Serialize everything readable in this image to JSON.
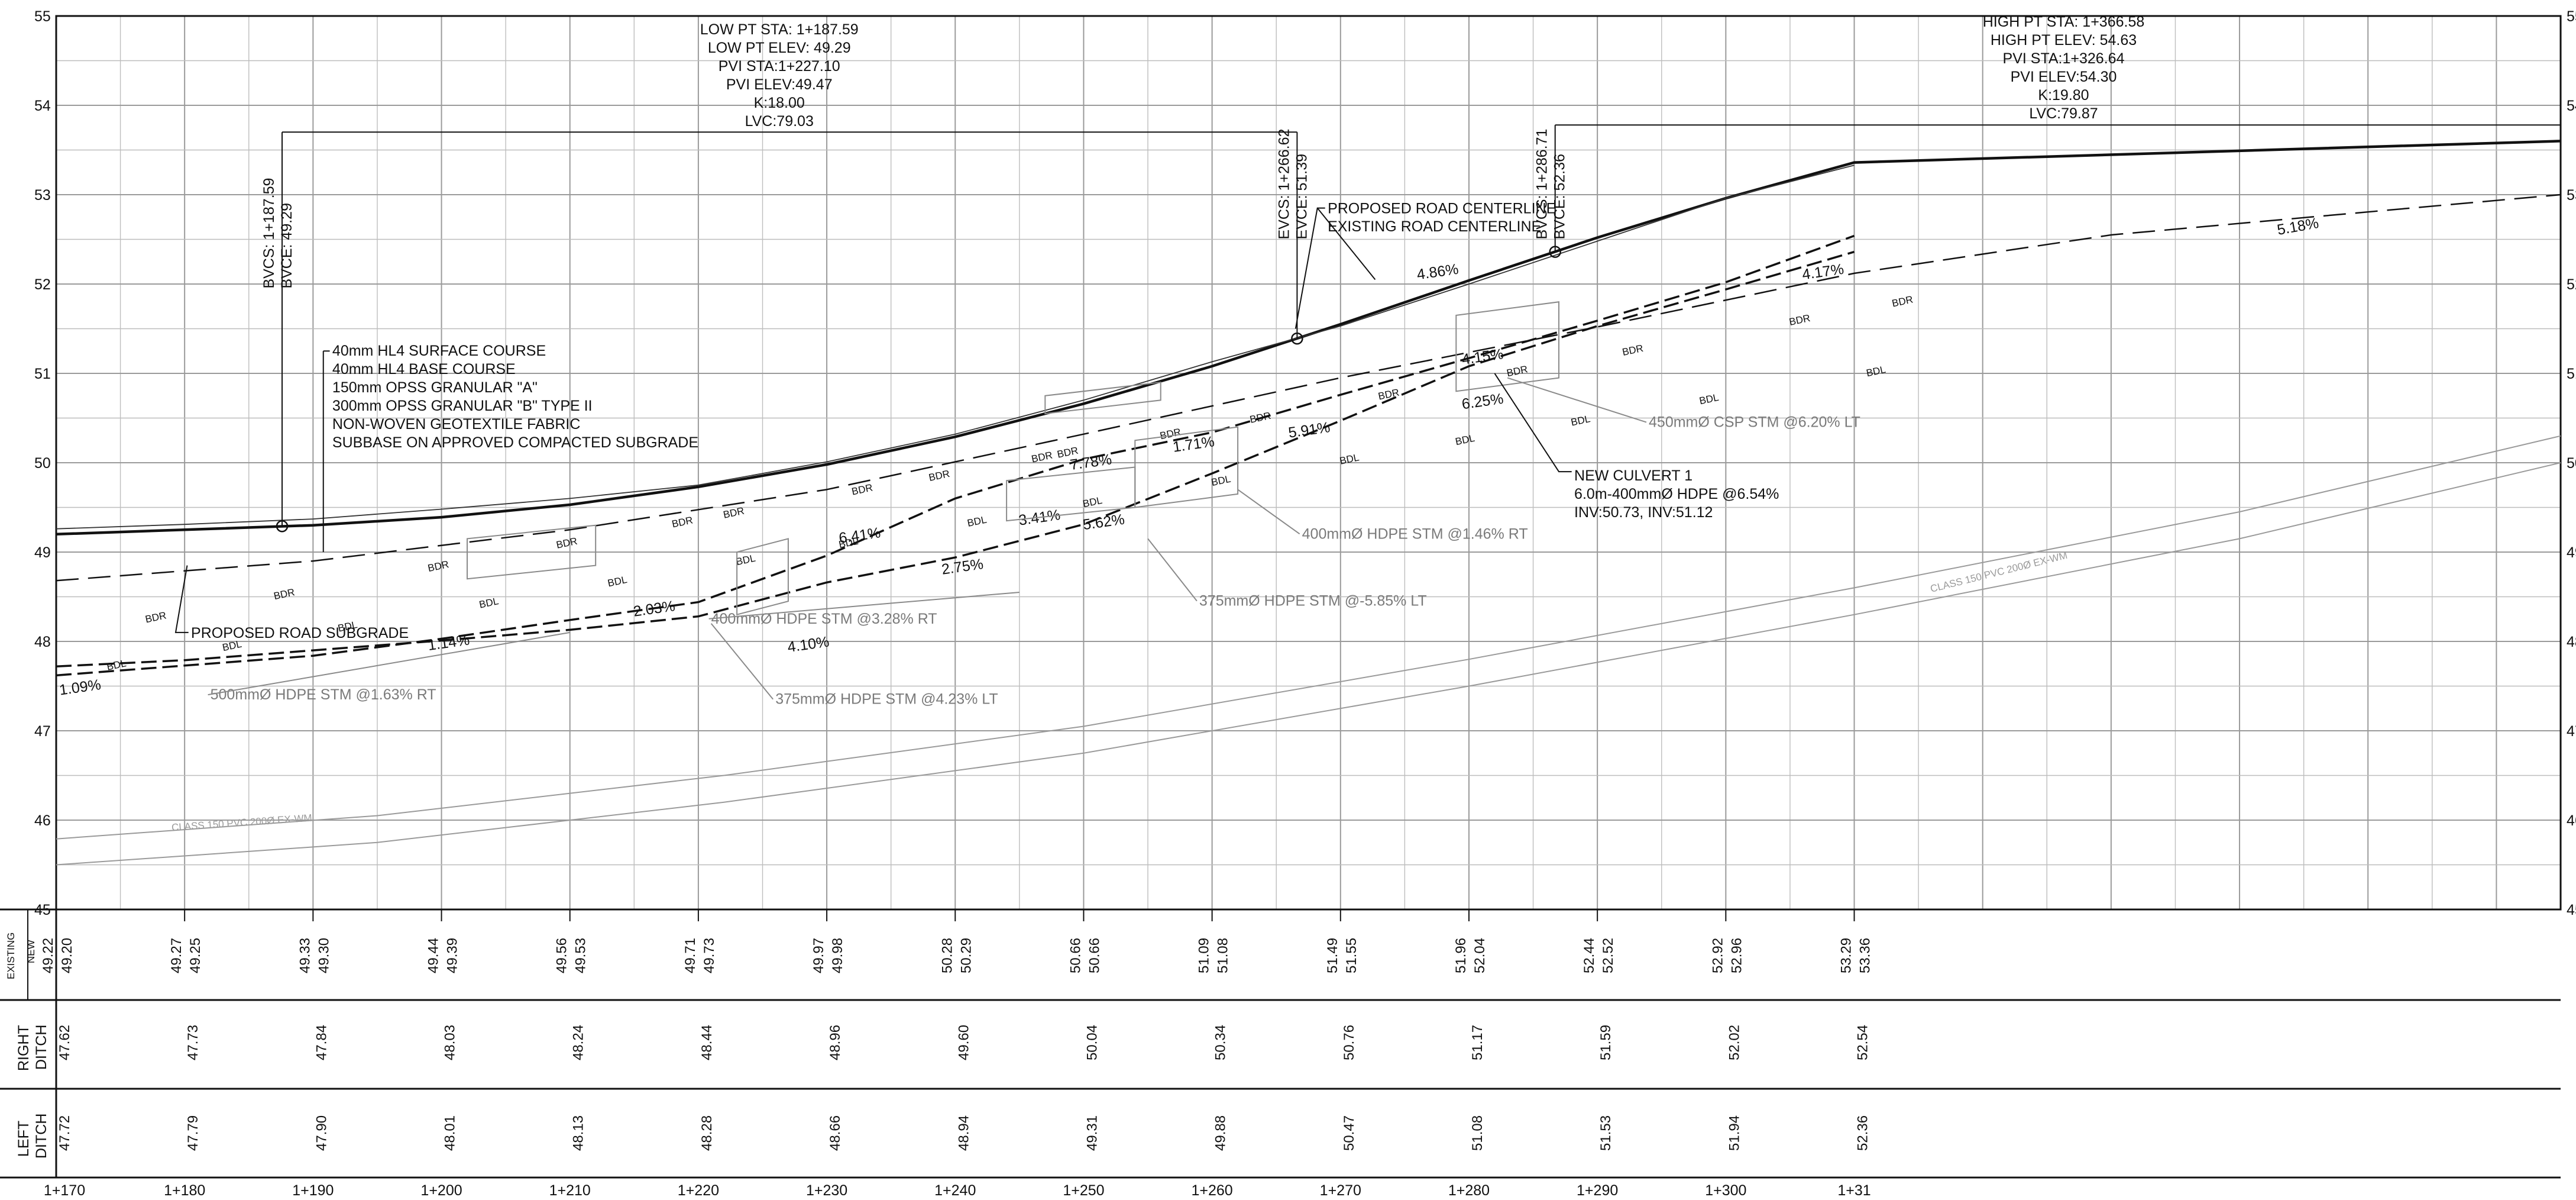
{
  "profile": {
    "y_axis": {
      "min": 45,
      "max": 55,
      "ticks": [
        "45",
        "46",
        "47",
        "48",
        "49",
        "50",
        "51",
        "52",
        "53",
        "54",
        "55"
      ]
    },
    "stations": [
      "1+170",
      "1+180",
      "1+190",
      "1+200",
      "1+210",
      "1+220",
      "1+230",
      "1+240",
      "1+250",
      "1+260",
      "1+270",
      "1+280",
      "1+290",
      "1+300",
      "1+31"
    ],
    "vertical_curves": [
      {
        "begin_label": "BVCS: 1+187.59",
        "begin_elev": "BVCE: 49.29",
        "end_label": "EVCS: 1+266.62",
        "end_elev": "EVCE: 51.39",
        "info": [
          "LOW PT STA: 1+187.59",
          "LOW PT ELEV: 49.29",
          "PVI STA:1+227.10",
          "PVI ELEV:49.47",
          "K:18.00",
          "LVC:79.03"
        ]
      },
      {
        "begin_label": "BVCS: 1+286.71",
        "begin_elev": "BVCE: 52.36",
        "info": [
          "HIGH PT STA: 1+366.58",
          "HIGH PT ELEV: 54.63",
          "PVI STA:1+326.64",
          "PVI ELEV:54.30",
          "K:19.80",
          "LVC:79.87"
        ]
      }
    ],
    "callouts": {
      "structure": [
        "40mm HL4 SURFACE COURSE",
        "40mm HL4 BASE COURSE",
        "150mm OPSS GRANULAR \"A\"",
        "300mm OPSS GRANULAR \"B\" TYPE II",
        "NON-WOVEN GEOTEXTILE FABRIC",
        "SUBBASE ON APPROVED COMPACTED SUBGRADE"
      ],
      "centerlines": [
        "PROPOSED ROAD CENTERLINE",
        "EXISTING ROAD CENTERLINE"
      ],
      "subgrade": "PROPOSED ROAD SUBGRADE",
      "culvert": [
        "NEW CULVERT 1",
        "6.0m-400mmØ  HDPE @6.54%",
        "INV:50.73, INV:51.12"
      ],
      "pipes": [
        "500mmØ HDPE STM @1.63% RT",
        "375mmØ HDPE STM @4.23% LT",
        "400mmØ HDPE STM @3.28% RT",
        "375mmØ HDPE STM @-5.85% LT",
        "400mmØ HDPE STM @1.46% RT",
        "450mmØ CSP STM @6.20% LT"
      ],
      "watermain": "CLASS 150 PVC 200Ø EX-WM"
    },
    "slopes": [
      "1.09%",
      "1.14%",
      "2.03%",
      "4.10%",
      "6.41%",
      "2.75%",
      "3.41%",
      "7.78%",
      "5.62%",
      "1.71%",
      "5.91%",
      "4.86%",
      "4.15%",
      "6.25%",
      "4.17%",
      "5.18%"
    ],
    "ditch_labels": {
      "right": "BDR",
      "left": "BDL"
    }
  },
  "table": {
    "row_labels": {
      "existing": "EXISTING",
      "new": "NEW",
      "right": [
        "RIGHT",
        "DITCH"
      ],
      "left": [
        "LEFT",
        "DITCH"
      ]
    },
    "profile_pairs": [
      {
        "existing": "49.22",
        "new": "49.20"
      },
      {
        "existing": "49.27",
        "new": "49.25"
      },
      {
        "existing": "49.33",
        "new": "49.30"
      },
      {
        "existing": "49.44",
        "new": "49.39"
      },
      {
        "existing": "49.56",
        "new": "49.53"
      },
      {
        "existing": "49.71",
        "new": "49.73"
      },
      {
        "existing": "49.97",
        "new": "49.98"
      },
      {
        "existing": "50.28",
        "new": "50.29"
      },
      {
        "existing": "50.66",
        "new": "50.66"
      },
      {
        "existing": "51.09",
        "new": "51.08"
      },
      {
        "existing": "51.49",
        "new": "51.55"
      },
      {
        "existing": "51.96",
        "new": "52.04"
      },
      {
        "existing": "52.44",
        "new": "52.52"
      },
      {
        "existing": "52.92",
        "new": "52.96"
      },
      {
        "existing": "53.29",
        "new": "53.36"
      }
    ],
    "right_ditch": [
      "47.62",
      "47.73",
      "47.84",
      "48.03",
      "48.24",
      "48.44",
      "48.96",
      "49.60",
      "50.04",
      "50.34",
      "50.76",
      "51.17",
      "51.59",
      "52.02",
      "52.54"
    ],
    "left_ditch": [
      "47.72",
      "47.79",
      "47.90",
      "48.01",
      "48.13",
      "48.28",
      "48.66",
      "48.94",
      "49.31",
      "49.88",
      "50.47",
      "51.08",
      "51.53",
      "51.94",
      "52.36"
    ]
  }
}
